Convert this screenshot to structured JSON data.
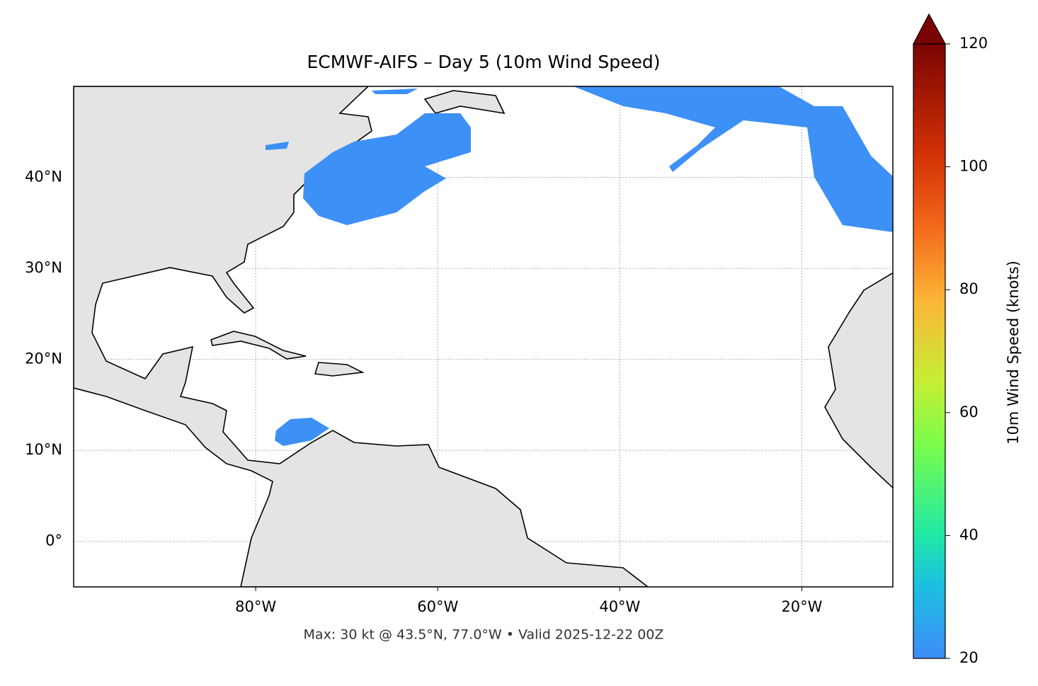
{
  "map": {
    "title": "ECMWF-AIFS – Day 5 (10m Wind Speed)",
    "note": "Max: 30 kt @ 43.5°N, 77.0°W • Valid 2025-12-22 00Z",
    "xlim": [
      -100,
      -10
    ],
    "ylim": [
      -5,
      50
    ],
    "xticks": [
      {
        "value": -80,
        "label": "80°W"
      },
      {
        "value": -60,
        "label": "60°W"
      },
      {
        "value": -40,
        "label": "40°W"
      },
      {
        "value": -20,
        "label": "20°W"
      }
    ],
    "yticks": [
      {
        "value": 0,
        "label": "0°"
      },
      {
        "value": 10,
        "label": "10°N"
      },
      {
        "value": 20,
        "label": "20°N"
      },
      {
        "value": 30,
        "label": "30°N"
      },
      {
        "value": 40,
        "label": "40°N"
      }
    ],
    "grid": true,
    "colorbar": {
      "label": "10m Wind Speed (knots)",
      "lim": [
        20,
        120
      ],
      "ticks": [
        20,
        40,
        60,
        80,
        100,
        120
      ]
    }
  }
}
